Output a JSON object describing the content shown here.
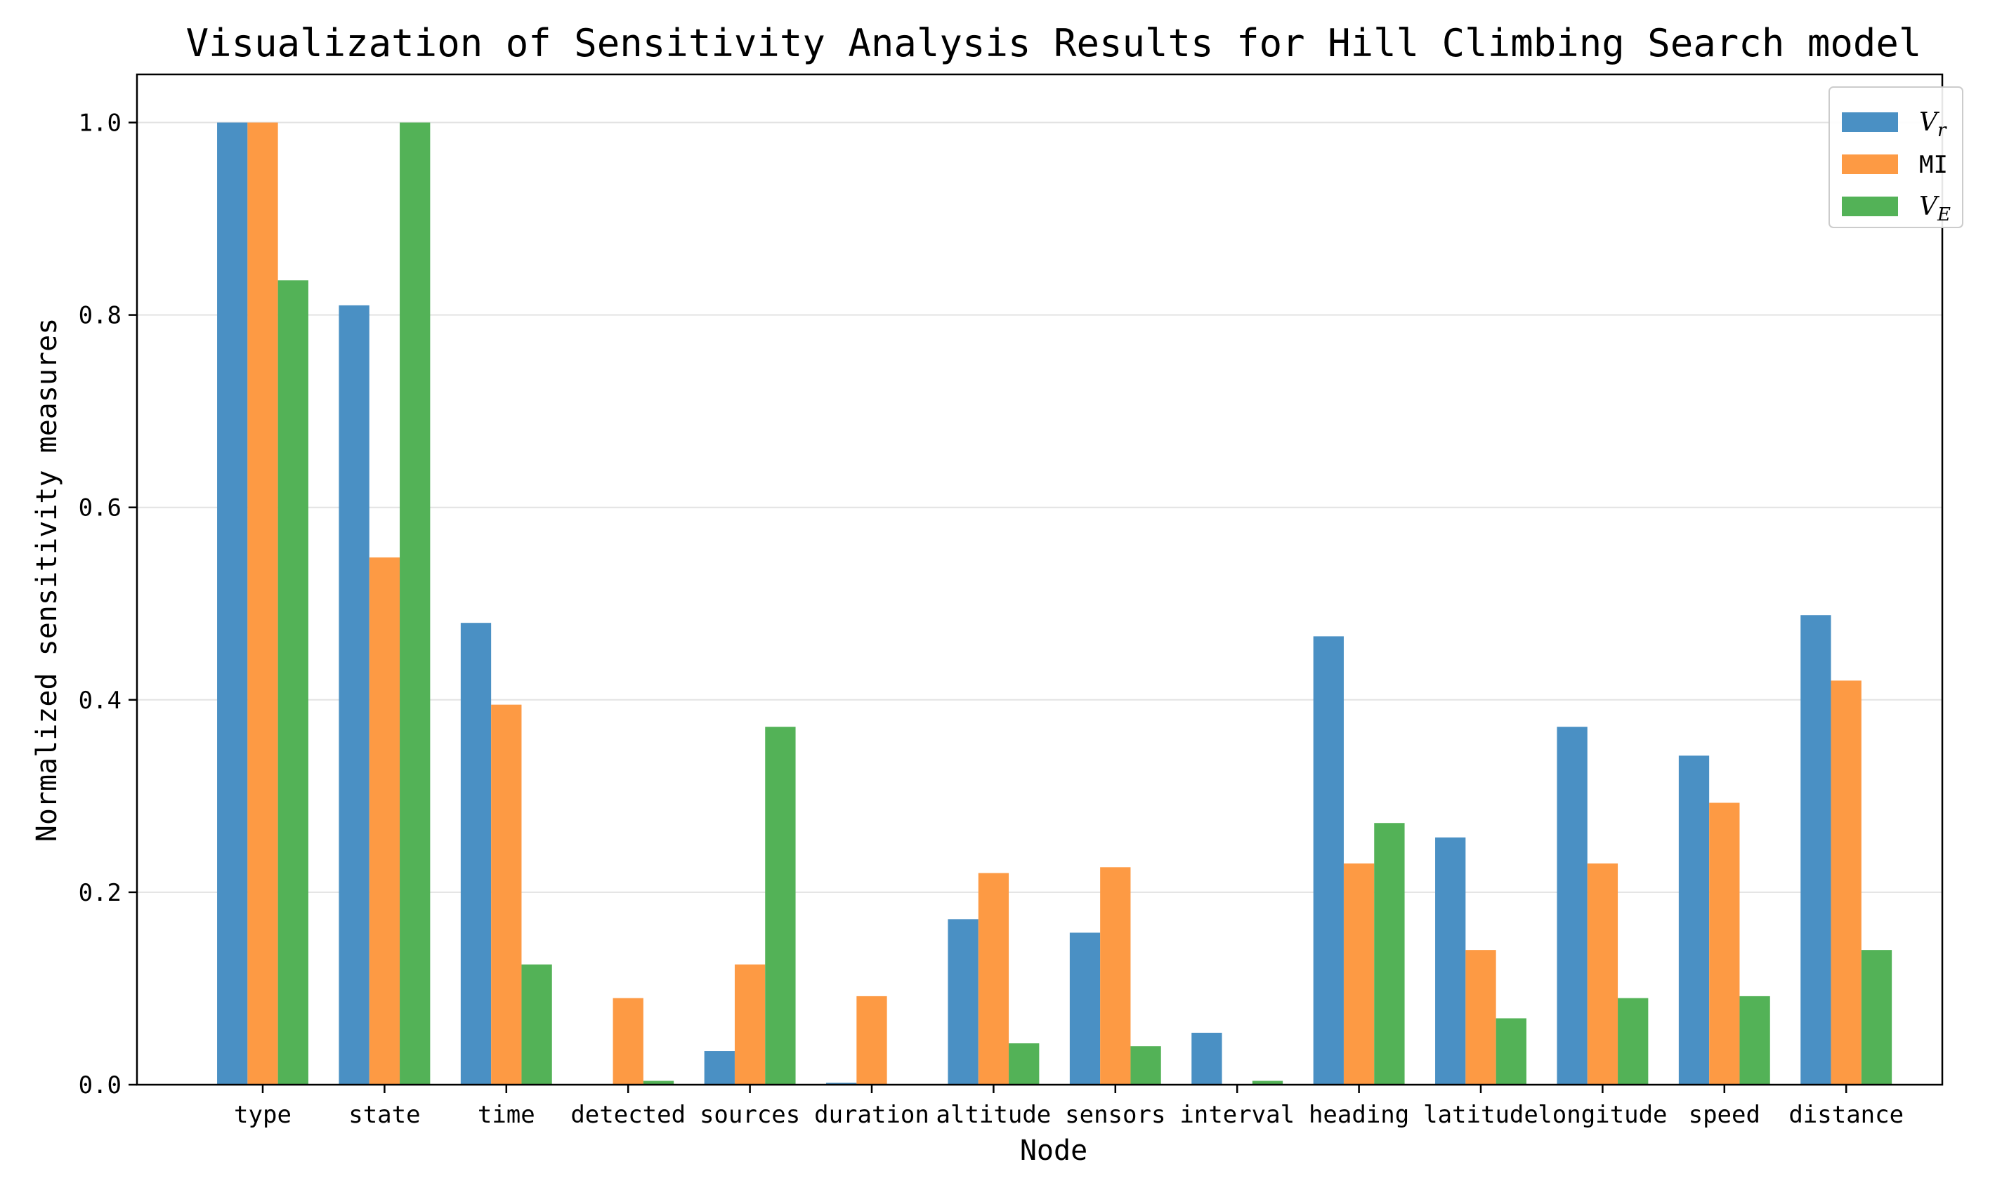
{
  "chart_data": {
    "type": "bar",
    "title": "Visualization of Sensitivity Analysis Results for Hill Climbing Search model",
    "xlabel": "Node",
    "ylabel": "Normalized sensitivity measures",
    "ylim": [
      0,
      1.05
    ],
    "yticks": [
      "0.0",
      "0.2",
      "0.4",
      "0.6",
      "0.8",
      "1.0"
    ],
    "grid": "horizontal",
    "legend_position": "top-right",
    "categories": [
      "type",
      "state",
      "time",
      "detected",
      "sources",
      "duration",
      "altitude",
      "sensors",
      "interval",
      "heading",
      "latitude",
      "longitude",
      "speed",
      "distance"
    ],
    "series": [
      {
        "name": "V_r",
        "legend_base": "V",
        "legend_sub": "r",
        "color": "#4a90c4",
        "values": [
          1.0,
          0.81,
          0.48,
          0.0,
          0.035,
          0.002,
          0.172,
          0.158,
          0.054,
          0.466,
          0.257,
          0.372,
          0.342,
          0.488
        ]
      },
      {
        "name": "MI",
        "legend_base": "MI",
        "legend_sub": "",
        "color": "#fd9a44",
        "values": [
          1.0,
          0.548,
          0.395,
          0.09,
          0.125,
          0.092,
          0.22,
          0.226,
          0.0,
          0.23,
          0.14,
          0.23,
          0.293,
          0.42
        ]
      },
      {
        "name": "V_E",
        "legend_base": "V",
        "legend_sub": "E",
        "color": "#53b257",
        "values": [
          0.836,
          1.0,
          0.125,
          0.004,
          0.372,
          0.0,
          0.043,
          0.04,
          0.004,
          0.272,
          0.069,
          0.09,
          0.092,
          0.14
        ]
      }
    ]
  }
}
